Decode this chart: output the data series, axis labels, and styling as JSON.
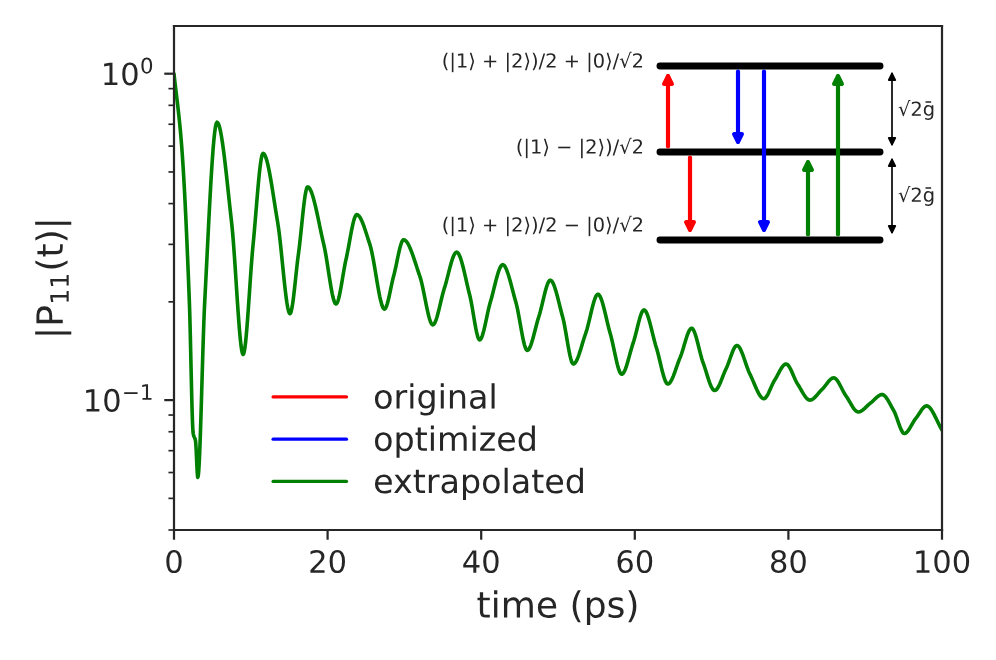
{
  "chart_data": {
    "type": "line",
    "xlabel": "time (ps)",
    "ylabel": "|P$_{11}$(t)|",
    "x": [
      0,
      1,
      2,
      2.5,
      2.8,
      3.1,
      4,
      5.6,
      7.5,
      9.0,
      10.3,
      11.6,
      13.5,
      15.1,
      16.2,
      17.4,
      19.5,
      21.1,
      22.4,
      23.8,
      25.5,
      27.4,
      28.6,
      29.9,
      32,
      33.7,
      35.2,
      36.8,
      38.5,
      39.8,
      41.2,
      42.8,
      44.5,
      46,
      47.5,
      49,
      50.6,
      52,
      53.6,
      55.2,
      56.8,
      58.3,
      59.8,
      61.2,
      62.8,
      64.3,
      65.9,
      67.4,
      68.9,
      70.4,
      71.9,
      73.3,
      75,
      76.8,
      78.2,
      79.7,
      81.2,
      82.8,
      84.4,
      85.9,
      87.5,
      89.1,
      90.7,
      92.2,
      93.7,
      95.1,
      96.6,
      98,
      100
    ],
    "series": [
      {
        "name": "original",
        "color": "#ff0000",
        "values": [
          null,
          null,
          null,
          null,
          null,
          null,
          null,
          null,
          null,
          null,
          null,
          null,
          null,
          null,
          null,
          null,
          null,
          null,
          null,
          null,
          null,
          null,
          null,
          null,
          null,
          null,
          null,
          null,
          null,
          null,
          null,
          null,
          null,
          null,
          null,
          null,
          null,
          null,
          null,
          null,
          null,
          null,
          null,
          null,
          null,
          null,
          null,
          null,
          null,
          null,
          null,
          null,
          null,
          null,
          null,
          null,
          null,
          null,
          null,
          null,
          null,
          null,
          null,
          null,
          null,
          null,
          null,
          null,
          null
        ]
      },
      {
        "name": "optimized",
        "color": "#0000ff",
        "values": [
          null,
          null,
          null,
          null,
          null,
          null,
          null,
          null,
          null,
          null,
          null,
          null,
          null,
          null,
          null,
          null,
          null,
          null,
          null,
          null,
          null,
          null,
          null,
          null,
          null,
          null,
          null,
          null,
          null,
          null,
          null,
          null,
          null,
          null,
          null,
          null,
          null,
          null,
          null,
          null,
          null,
          null,
          null,
          null,
          null,
          null,
          null,
          null,
          null,
          null,
          null,
          null,
          null,
          null,
          null,
          null,
          null,
          null,
          null,
          null,
          null,
          null,
          null,
          null,
          null,
          null,
          null,
          null,
          null
        ]
      },
      {
        "name": "extrapolated",
        "color": "#008000",
        "values": [
          1.0,
          0.6,
          0.2,
          0.079,
          0.075,
          0.058,
          0.2,
          0.71,
          0.35,
          0.138,
          0.3,
          0.57,
          0.35,
          0.184,
          0.28,
          0.45,
          0.3,
          0.197,
          0.27,
          0.37,
          0.3,
          0.19,
          0.24,
          0.31,
          0.24,
          0.17,
          0.22,
          0.284,
          0.21,
          0.153,
          0.2,
          0.26,
          0.2,
          0.142,
          0.18,
          0.233,
          0.18,
          0.129,
          0.16,
          0.211,
          0.16,
          0.12,
          0.15,
          0.189,
          0.145,
          0.112,
          0.135,
          0.166,
          0.13,
          0.107,
          0.125,
          0.147,
          0.12,
          0.101,
          0.115,
          0.129,
          0.112,
          0.1,
          0.108,
          0.117,
          0.103,
          0.092,
          0.098,
          0.104,
          0.093,
          0.079,
          0.088,
          0.096,
          0.081
        ]
      }
    ],
    "log": "y",
    "xlim": [
      0,
      100
    ],
    "ylim": [
      0.04,
      1.4
    ],
    "xticks": [
      0,
      20,
      40,
      60,
      80,
      100
    ],
    "yticks": [
      {
        "value": 0.1,
        "label": "10$^{−1}$"
      },
      {
        "value": 1,
        "label": "10$^{0}$"
      }
    ],
    "legend": "bottom",
    "grid": false,
    "annotations": [
      "(|1⟩ + |2⟩)/2 + |0⟩/√2",
      "(|1⟩ − |2⟩)/√2",
      "(|1⟩ + |2⟩)/2 − |0⟩/√2",
      "√2ḡ",
      "√2ḡ"
    ]
  }
}
